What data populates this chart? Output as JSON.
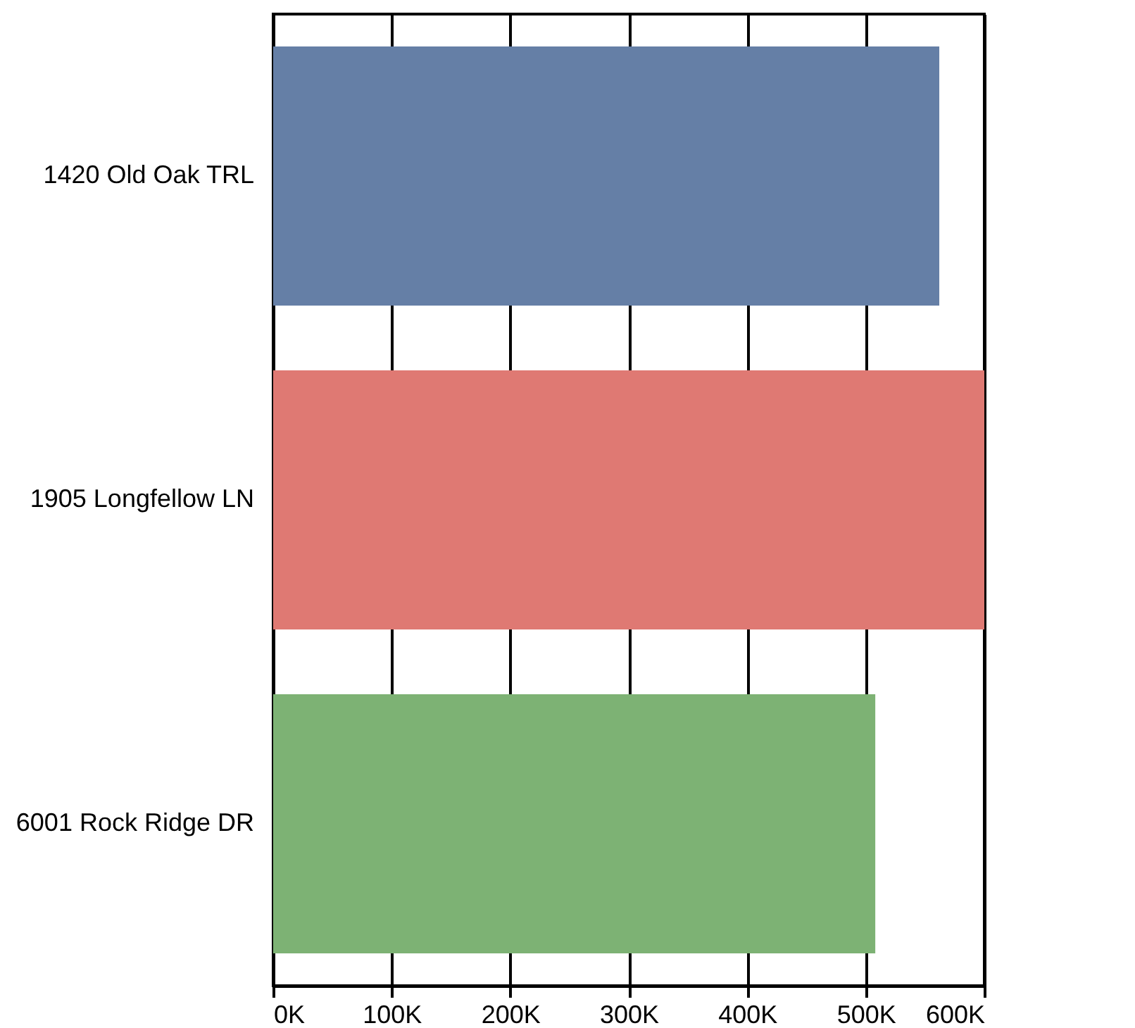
{
  "chart_data": {
    "type": "bar",
    "orientation": "horizontal",
    "categories": [
      "1420 Old Oak TRL",
      "1905 Longfellow LN",
      "6001 Rock Ridge DR"
    ],
    "values": [
      562000,
      600000,
      508000
    ],
    "colors": [
      "#657fa6",
      "#df7973",
      "#7db274"
    ],
    "xlim": [
      0,
      600000
    ],
    "xticks": [
      {
        "value": 0,
        "label": "0K"
      },
      {
        "value": 100000,
        "label": "100K"
      },
      {
        "value": 200000,
        "label": "200K"
      },
      {
        "value": 300000,
        "label": "300K"
      },
      {
        "value": 400000,
        "label": "400K"
      },
      {
        "value": 500000,
        "label": "500K"
      },
      {
        "value": 600000,
        "label": "600K"
      }
    ],
    "grid": "x",
    "legend": false
  }
}
